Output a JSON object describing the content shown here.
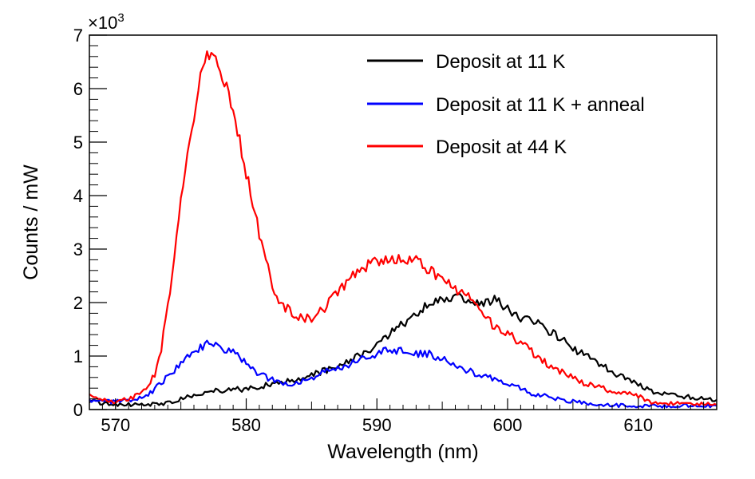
{
  "chart_data": {
    "type": "line",
    "title": "",
    "xlabel": "Wavelength (nm)",
    "ylabel": "Counts / mW",
    "y_multiplier_label": "×10",
    "y_multiplier_exponent": "3",
    "xlim": [
      568,
      616
    ],
    "ylim": [
      0,
      7000
    ],
    "x_ticks": [
      570,
      580,
      590,
      600,
      610
    ],
    "y_ticks": [
      0,
      1,
      2,
      3,
      4,
      5,
      6,
      7
    ],
    "grid": false,
    "legend_position": "top-right",
    "series": [
      {
        "name": "Deposit at 11 K",
        "color": "#000000",
        "x": [
          568,
          570,
          572,
          574,
          575,
          576,
          577,
          578,
          579,
          580,
          581,
          582,
          583,
          584,
          585,
          586,
          587,
          588,
          589,
          590,
          591,
          592,
          593,
          594,
          595,
          596,
          597,
          598,
          599,
          600,
          601,
          602,
          603,
          604,
          605,
          606,
          607,
          608,
          609,
          610,
          611,
          612,
          613,
          614,
          615,
          616
        ],
        "values": [
          150,
          100,
          90,
          120,
          200,
          280,
          330,
          360,
          380,
          380,
          420,
          480,
          520,
          560,
          640,
          720,
          800,
          940,
          1060,
          1200,
          1420,
          1600,
          1800,
          1960,
          2080,
          2120,
          2050,
          1980,
          2050,
          1900,
          1720,
          1650,
          1500,
          1350,
          1150,
          1000,
          850,
          700,
          570,
          450,
          350,
          290,
          260,
          230,
          200,
          180
        ]
      },
      {
        "name": "Deposit at 11 K + anneal",
        "color": "#0000ff",
        "x": [
          568,
          570,
          571,
          572,
          573,
          574,
          575,
          576,
          577,
          578,
          579,
          580,
          581,
          582,
          583,
          584,
          585,
          586,
          587,
          588,
          589,
          590,
          591,
          592,
          593,
          594,
          595,
          596,
          597,
          598,
          599,
          600,
          601,
          602,
          603,
          604,
          605,
          606,
          608,
          610,
          612,
          614,
          616
        ],
        "values": [
          150,
          150,
          180,
          220,
          380,
          620,
          850,
          1100,
          1230,
          1170,
          1060,
          900,
          650,
          560,
          480,
          500,
          600,
          700,
          780,
          850,
          950,
          1050,
          1120,
          1100,
          1050,
          1040,
          950,
          840,
          720,
          650,
          550,
          460,
          390,
          290,
          250,
          180,
          150,
          120,
          80,
          60,
          70,
          80,
          70
        ]
      },
      {
        "name": "Deposit at 44 K",
        "color": "#ff0000",
        "x": [
          568,
          569,
          570,
          571,
          572,
          573,
          573.5,
          574,
          574.5,
          575,
          575.5,
          576,
          576.5,
          577,
          577.5,
          578,
          578.5,
          579,
          579.5,
          580,
          580.5,
          581,
          581.5,
          582,
          582.5,
          583,
          584,
          585,
          586,
          587,
          588,
          589,
          590,
          591,
          592,
          593,
          594,
          595,
          596,
          597,
          598,
          599,
          600,
          601,
          602,
          603,
          604,
          605,
          606,
          607,
          608,
          609,
          610,
          611,
          612,
          613,
          614,
          615,
          616
        ],
        "values": [
          250,
          180,
          150,
          200,
          300,
          650,
          1150,
          1900,
          2900,
          3900,
          4700,
          5500,
          6300,
          6600,
          6600,
          6400,
          6000,
          5600,
          5000,
          4400,
          3900,
          3300,
          2800,
          2350,
          2050,
          1900,
          1720,
          1700,
          1900,
          2200,
          2450,
          2650,
          2780,
          2820,
          2850,
          2780,
          2600,
          2420,
          2250,
          2100,
          1800,
          1550,
          1420,
          1250,
          1050,
          850,
          720,
          600,
          480,
          420,
          350,
          300,
          250,
          120,
          100,
          130,
          120,
          110,
          90
        ]
      }
    ]
  }
}
